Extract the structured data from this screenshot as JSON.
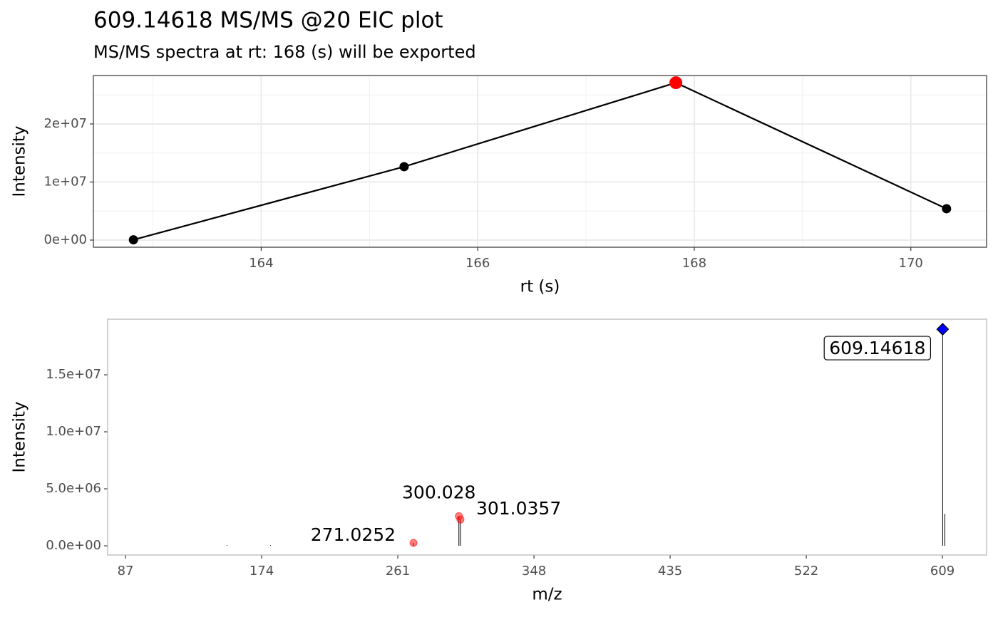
{
  "chart_data": [
    {
      "type": "line",
      "title": "609.14618 MS/MS @20 EIC plot",
      "subtitle": "MS/MS spectra at rt: 168 (s) will be exported",
      "x_label": "rt (s)",
      "y_label": "Intensity",
      "x": [
        162.82,
        165.32,
        167.83,
        170.33
      ],
      "values": [
        50000,
        12640000,
        27100000,
        5400000
      ],
      "color": "#000000",
      "highlight": 2,
      "highlight_color": "#ff0000",
      "xlim": [
        162.45,
        170.7
      ],
      "ylim": [
        -1230000,
        28340000
      ],
      "xticks": [
        164,
        166,
        168,
        170
      ],
      "yticks": [
        {
          "value": 0,
          "label": "0e+00"
        },
        {
          "value": 10000000,
          "label": "1e+07"
        },
        {
          "value": 20000000,
          "label": "2e+07"
        }
      ],
      "xminor": [
        163,
        165,
        167,
        169
      ],
      "yminor": [
        5000000,
        15000000,
        25000000
      ],
      "grid": true
    },
    {
      "type": "spectrum",
      "x_label": "m/z",
      "y_label": "Intensity",
      "x": [
        151.9,
        179.6,
        271.0252,
        300.028,
        301.0357,
        609.14618,
        610.5
      ],
      "values": [
        60000,
        60000,
        250000,
        2600000,
        2300000,
        19000000,
        2800000
      ],
      "markers": [
        "none",
        "none",
        "circle",
        "circle",
        "circle",
        "diamond",
        "none"
      ],
      "fragment_color": "#ff0000",
      "precursor_color": "#0000ff",
      "xlim": [
        75.6,
        637.2
      ],
      "ylim": [
        -810000,
        19880000
      ],
      "xticks": [
        87,
        174,
        261,
        348,
        435,
        522,
        609
      ],
      "yticks": [
        {
          "value": 0,
          "label": "0.0e+00"
        },
        {
          "value": 5000000,
          "label": "5.0e+06"
        },
        {
          "value": 10000000,
          "label": "1.0e+07"
        },
        {
          "value": 15000000,
          "label": "1.5e+07"
        }
      ],
      "grid": false
    }
  ]
}
